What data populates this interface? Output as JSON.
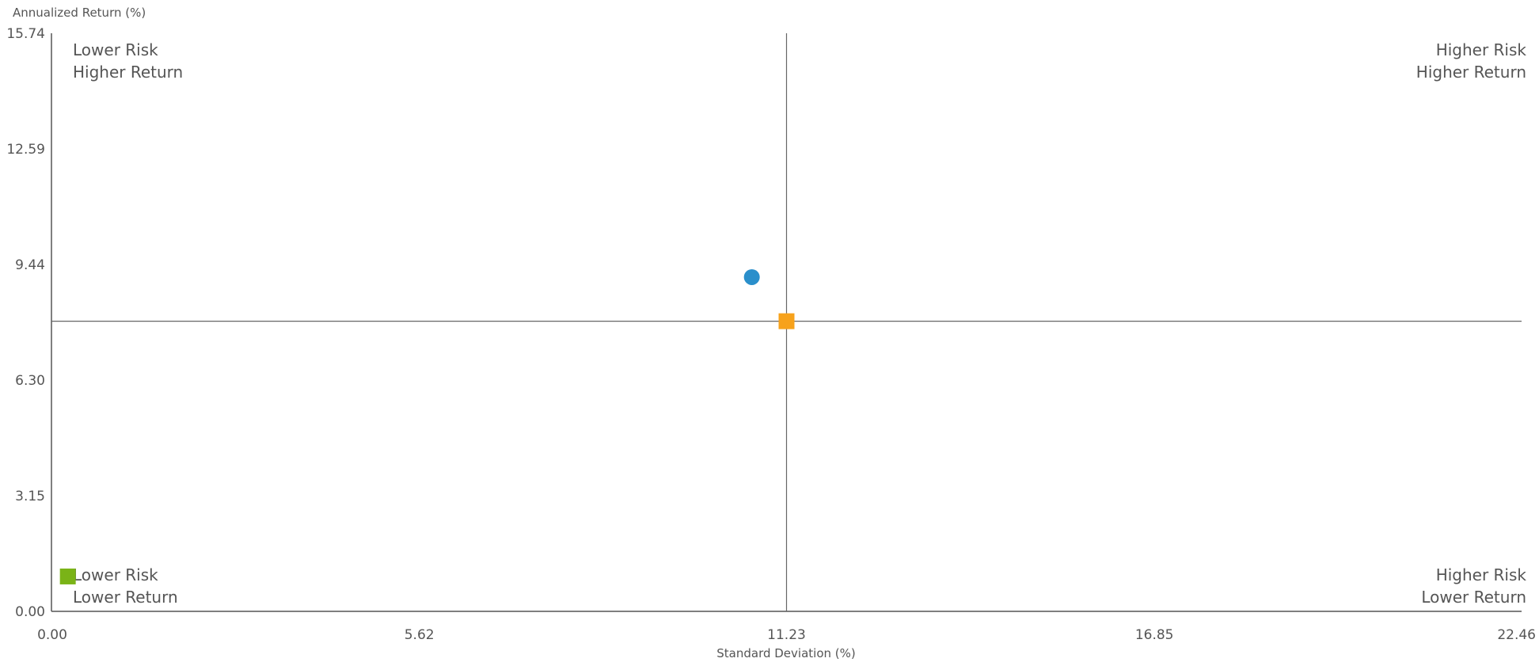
{
  "chart_data": {
    "type": "scatter",
    "xlabel": "Standard Deviation (%)",
    "ylabel": "Annualized Return (%)",
    "xlim": [
      0,
      22.46
    ],
    "ylim": [
      0,
      15.74
    ],
    "x_ticks": [
      "0.00",
      "5.62",
      "11.23",
      "16.85",
      "22.46"
    ],
    "y_ticks": [
      "0.00",
      "3.15",
      "6.30",
      "9.44",
      "12.59",
      "15.74"
    ],
    "quadrant_labels": {
      "top_left": [
        "Lower Risk",
        "Higher Return"
      ],
      "top_right": [
        "Higher Risk",
        "Higher Return"
      ],
      "bottom_left": [
        "Lower Risk",
        "Lower Return"
      ],
      "bottom_right": [
        "Higher Risk",
        "Lower Return"
      ]
    },
    "crosshair": {
      "x": 11.23,
      "y": 7.9
    },
    "grid": false,
    "points": [
      {
        "x": 10.7,
        "y": 9.1,
        "shape": "circle",
        "color": "#2a8fcb"
      },
      {
        "x": 11.23,
        "y": 7.9,
        "shape": "square",
        "color": "#f7a21b"
      },
      {
        "x": 0.25,
        "y": 0.95,
        "shape": "square",
        "color": "#7ab317"
      }
    ]
  }
}
